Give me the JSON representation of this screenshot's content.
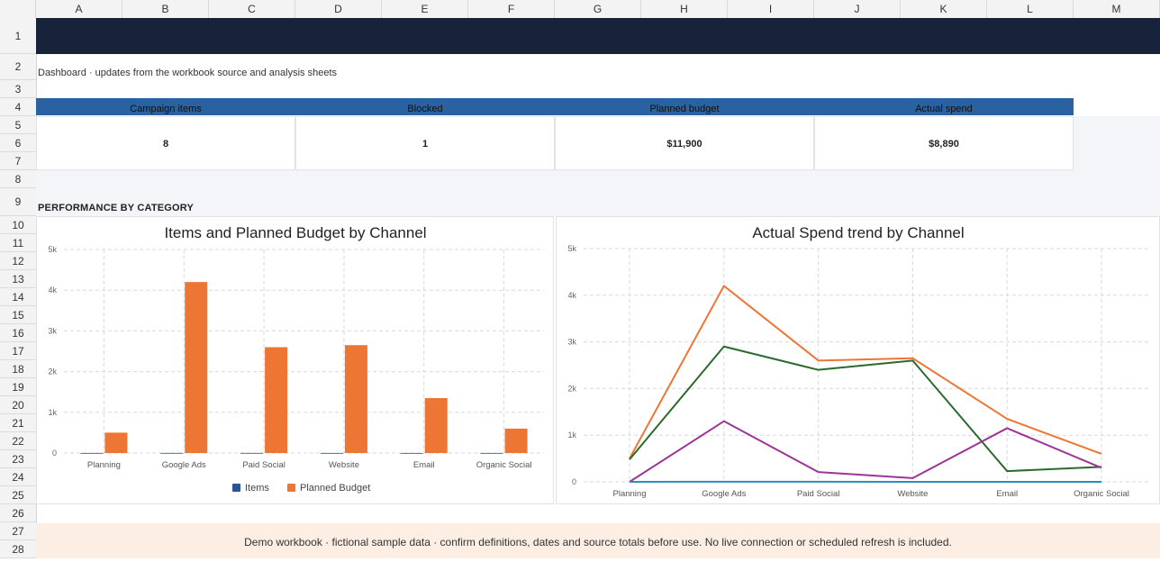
{
  "columns": [
    "A",
    "B",
    "C",
    "D",
    "E",
    "F",
    "G",
    "H",
    "I",
    "J",
    "K",
    "L",
    "M"
  ],
  "rows": [
    "1",
    "2",
    "3",
    "4",
    "5",
    "6",
    "7",
    "8",
    "9",
    "10",
    "11",
    "12",
    "13",
    "14",
    "15",
    "16",
    "17",
    "18",
    "19",
    "20",
    "21",
    "22",
    "23",
    "24",
    "25",
    "26",
    "27",
    "28"
  ],
  "subtitle": "Dashboard · updates from the workbook source and analysis sheets",
  "kpis": [
    {
      "label": "Campaign items",
      "value": "8"
    },
    {
      "label": "Blocked",
      "value": "1"
    },
    {
      "label": "Planned budget",
      "value": "$11,900"
    },
    {
      "label": "Actual spend",
      "value": "$8,890"
    }
  ],
  "section_label": "PERFORMANCE BY CATEGORY",
  "footer": "Demo workbook · fictional sample data · confirm definitions, dates and source totals before use. No live connection or scheduled refresh is included.",
  "chart_data": [
    {
      "type": "bar",
      "title": "Items and Planned Budget by Channel",
      "categories": [
        "Planning",
        "Google Ads",
        "Paid Social",
        "Website",
        "Email",
        "Organic Social"
      ],
      "ylim": [
        0,
        5000
      ],
      "yticks": [
        0,
        1000,
        2000,
        3000,
        4000,
        5000
      ],
      "ytick_labels": [
        "0",
        "1k",
        "2k",
        "3k",
        "4k",
        "5k"
      ],
      "series": [
        {
          "name": "Items",
          "color": "#2a5592",
          "values": [
            1,
            2,
            2,
            1,
            1,
            1
          ]
        },
        {
          "name": "Planned Budget",
          "color": "#ed7634",
          "values": [
            500,
            4200,
            2600,
            2650,
            1350,
            600
          ]
        }
      ],
      "legend": "bottom",
      "grid": true
    },
    {
      "type": "line",
      "title": "Actual Spend trend by Channel",
      "categories": [
        "Planning",
        "Google Ads",
        "Paid Social",
        "Website",
        "Email",
        "Organic Social"
      ],
      "ylim": [
        0,
        5000
      ],
      "yticks": [
        0,
        1000,
        2000,
        3000,
        4000,
        5000
      ],
      "ytick_labels": [
        "0",
        "1k",
        "2k",
        "3k",
        "4k",
        "5k"
      ],
      "series": [
        {
          "color": "#ed7634",
          "values": [
            500,
            4200,
            2600,
            2650,
            1350,
            600
          ]
        },
        {
          "color": "#2b6a2f",
          "values": [
            480,
            2900,
            2400,
            2600,
            230,
            320
          ]
        },
        {
          "color": "#9c3596",
          "values": [
            0,
            1300,
            210,
            80,
            1150,
            300
          ]
        },
        {
          "color": "#2b8cbf",
          "values": [
            1,
            2,
            2,
            1,
            1,
            1
          ]
        }
      ],
      "grid": true
    }
  ]
}
